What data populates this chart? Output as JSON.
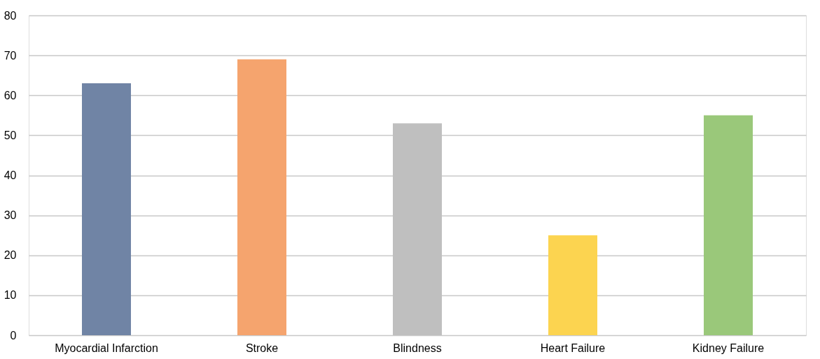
{
  "chart_data": {
    "type": "bar",
    "categories": [
      "Myocardial Infarction",
      "Stroke",
      "Blindness",
      "Heart Failure",
      "Kidney Failure"
    ],
    "values": [
      63,
      69,
      53,
      25,
      55
    ],
    "colors": [
      "#7084a5",
      "#f5a46e",
      "#bfbfbf",
      "#fcd450",
      "#9ac87a"
    ],
    "ylim": [
      0,
      80
    ],
    "yticks": [
      0,
      10,
      20,
      30,
      40,
      50,
      60,
      70,
      80
    ],
    "grid": "y"
  }
}
